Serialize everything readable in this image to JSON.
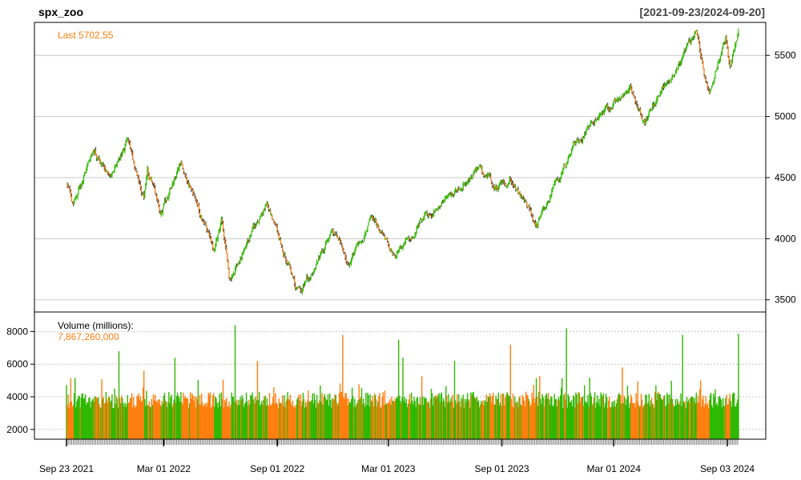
{
  "chart": {
    "title": "spx_zoo",
    "date_range": "[2021-09-23/2024-09-20]",
    "last_label": "Last 5702.55",
    "volume_label": "Volume (millions):",
    "volume_value": "7,867,260,000",
    "colors": {
      "up": "#2fb800",
      "down": "#ff7f0e",
      "candle_body_down": "#ff7f0e",
      "grid": "#c8c8c8",
      "frame": "#000000",
      "accent_text": "#ff7f0e"
    }
  },
  "chart_data": [
    {
      "type": "candlestick",
      "title": "spx_zoo",
      "ylim": [
        3400,
        5770
      ],
      "y_ticks": [
        3500,
        4000,
        4500,
        5000,
        5500
      ],
      "y_tick_labels": [
        "3500",
        "4000",
        "4500",
        "5000",
        "5500"
      ],
      "date_range": [
        "2021-09-23",
        "2024-09-20"
      ],
      "last": 5702.55,
      "grid": true,
      "anchors": [
        {
          "date": "2021-09-23",
          "close": 4450
        },
        {
          "date": "2021-10-04",
          "close": 4300
        },
        {
          "date": "2021-11-08",
          "close": 4700
        },
        {
          "date": "2021-12-01",
          "close": 4520
        },
        {
          "date": "2022-01-03",
          "close": 4790
        },
        {
          "date": "2022-01-27",
          "close": 4330
        },
        {
          "date": "2022-02-02",
          "close": 4590
        },
        {
          "date": "2022-02-24",
          "close": 4220
        },
        {
          "date": "2022-03-29",
          "close": 4630
        },
        {
          "date": "2022-05-20",
          "close": 3900
        },
        {
          "date": "2022-06-02",
          "close": 4170
        },
        {
          "date": "2022-06-16",
          "close": 3670
        },
        {
          "date": "2022-08-16",
          "close": 4300
        },
        {
          "date": "2022-09-30",
          "close": 3590
        },
        {
          "date": "2022-10-12",
          "close": 3580
        },
        {
          "date": "2022-11-30",
          "close": 4080
        },
        {
          "date": "2022-12-28",
          "close": 3790
        },
        {
          "date": "2023-02-02",
          "close": 4180
        },
        {
          "date": "2023-03-13",
          "close": 3850
        },
        {
          "date": "2023-04-20",
          "close": 4130
        },
        {
          "date": "2023-07-31",
          "close": 4590
        },
        {
          "date": "2023-08-25",
          "close": 4400
        },
        {
          "date": "2023-09-14",
          "close": 4500
        },
        {
          "date": "2023-10-27",
          "close": 4120
        },
        {
          "date": "2023-12-29",
          "close": 4770
        },
        {
          "date": "2024-03-28",
          "close": 5250
        },
        {
          "date": "2024-04-19",
          "close": 4970
        },
        {
          "date": "2024-07-16",
          "close": 5670
        },
        {
          "date": "2024-08-05",
          "close": 5190
        },
        {
          "date": "2024-08-30",
          "close": 5650
        },
        {
          "date": "2024-09-06",
          "close": 5410
        },
        {
          "date": "2024-09-20",
          "close": 5702.55
        }
      ]
    },
    {
      "type": "bar",
      "title": "Volume (millions):",
      "ylim": [
        1400,
        9200
      ],
      "y_ticks": [
        2000,
        4000,
        6000,
        8000
      ],
      "y_tick_labels": [
        "2000",
        "4000",
        "6000",
        "8000"
      ],
      "last": 7867.26,
      "base_level": 3800,
      "spikes": [
        {
          "date": "2021-12-17",
          "value": 6800
        },
        {
          "date": "2022-01-27",
          "value": 5600
        },
        {
          "date": "2022-03-18",
          "value": 6400
        },
        {
          "date": "2022-06-24",
          "value": 8400
        },
        {
          "date": "2022-08-01",
          "value": 6200
        },
        {
          "date": "2022-12-16",
          "value": 7800
        },
        {
          "date": "2023-03-17",
          "value": 7500
        },
        {
          "date": "2023-03-24",
          "value": 6400
        },
        {
          "date": "2023-06-16",
          "value": 6200
        },
        {
          "date": "2023-09-15",
          "value": 7200
        },
        {
          "date": "2023-12-15",
          "value": 8200
        },
        {
          "date": "2024-03-15",
          "value": 5800
        },
        {
          "date": "2024-06-21",
          "value": 7800
        },
        {
          "date": "2024-09-20",
          "value": 7867.26
        }
      ]
    }
  ],
  "x_axis": {
    "tick_labels": [
      "Sep 23 2021",
      "Mar 01 2022",
      "Sep 01 2022",
      "Mar 01 2023",
      "Sep 01 2023",
      "Mar 01 2024",
      "Sep 03 2024"
    ],
    "tick_dates": [
      "2021-09-23",
      "2022-03-01",
      "2022-09-01",
      "2023-03-01",
      "2023-09-01",
      "2024-03-01",
      "2024-09-03"
    ]
  }
}
